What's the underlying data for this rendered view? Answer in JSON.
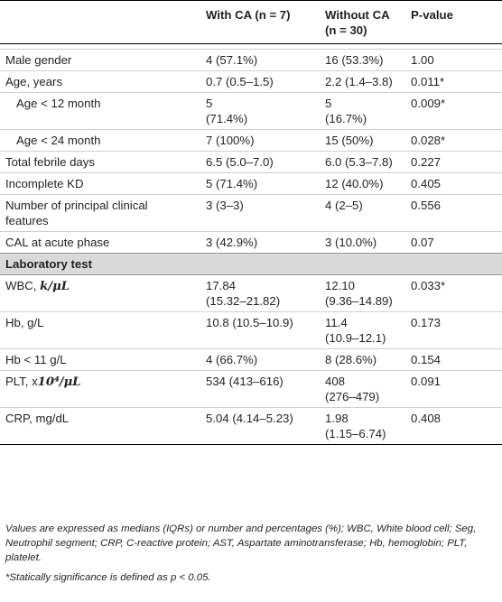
{
  "headers": {
    "col1": "",
    "col2": "With CA (n = 7)",
    "col3_line1": "Without CA",
    "col3_line2": "(n = 30)",
    "col4": "P-value"
  },
  "rows": [
    {
      "label": "Male gender",
      "with": "4 (57.1%)",
      "without": "16 (53.3%)",
      "p": "1.00"
    },
    {
      "label": "Age, years",
      "with": "0.7 (0.5–1.5)",
      "without": "2.2 (1.4–3.8)",
      "p": "0.011*"
    },
    {
      "label": "Age < 12 month",
      "with_line1": "5",
      "with_line2": "(71.4%)",
      "without_line1": "5",
      "without_line2": "(16.7%)",
      "p": "0.009*"
    },
    {
      "label": "Age < 24 month",
      "with": "7 (100%)",
      "without": "15 (50%)",
      "p": "0.028*"
    },
    {
      "label": "Total febrile days",
      "with": "6.5 (5.0–7.0)",
      "without": "6.0 (5.3–7.8)",
      "p": "0.227"
    },
    {
      "label": "Incomplete KD",
      "with": "5 (71.4%)",
      "without": "12 (40.0%)",
      "p": "0.405"
    },
    {
      "label_line1": "Number of principal clinical",
      "label_line2": "features",
      "with": "3 (3–3)",
      "without": "4 (2–5)",
      "p": "0.556"
    },
    {
      "label": "CAL at acute phase",
      "with": "3 (42.9%)",
      "without": "3 (10.0%)",
      "p": "0.07"
    }
  ],
  "section": "Laboratory test",
  "lab_rows": [
    {
      "label_prefix": "WBC, ",
      "label_unit": "k/μL",
      "with_line1": "17.84",
      "with_line2": "(15.32–21.82)",
      "without_line1": "12.10",
      "without_line2": "(9.36–14.89)",
      "p": "0.033*"
    },
    {
      "label": "Hb, g/L",
      "with": "10.8 (10.5–10.9)",
      "without_line1": "11.4",
      "without_line2": "(10.9–12.1)",
      "p": "0.173"
    },
    {
      "label": "Hb < 11 g/L",
      "with": "4 (66.7%)",
      "without": "8 (28.6%)",
      "p": "0.154"
    },
    {
      "label_prefix": "PLT, x",
      "label_unit": "10⁴/μL",
      "with": "534 (413–616)",
      "without_line1": "408",
      "without_line2": "(276–479)",
      "p": "0.091"
    },
    {
      "label": "CRP, mg/dL",
      "with": "5.04 (4.14–5.23)",
      "without_line1": "1.98",
      "without_line2": "(1.15–6.74)",
      "p": "0.408"
    }
  ],
  "footnotes": {
    "abbrev": "Values are expressed as medians (IQRs) or number and percentages (%); WBC, White blood cell; Seg, Neutrophil segment; CRP, C-reactive protein; AST, Aspartate aminotransferase; Hb, hemoglobin; PLT, platelet.",
    "significance": "*Statically significance is defined as p < 0.05."
  }
}
